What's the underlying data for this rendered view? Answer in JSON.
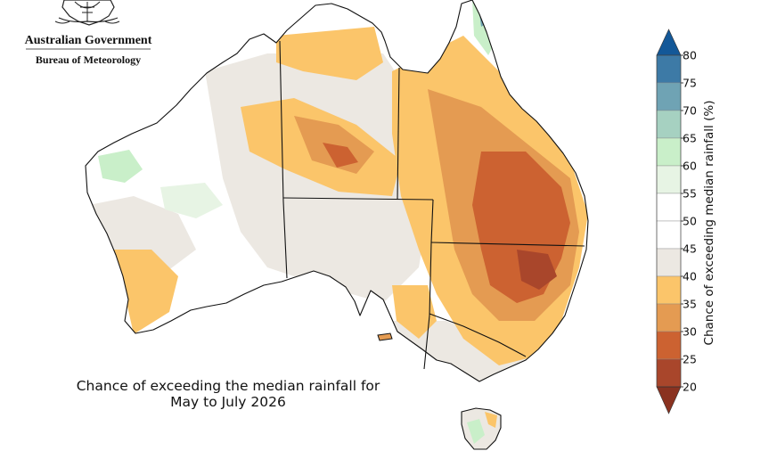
{
  "header": {
    "logo_icon": "coat-of-arms-icon",
    "government": "Australian Government",
    "bureau": "Bureau of Meteorology"
  },
  "map": {
    "caption_line1": "Chance of exceeding the median rainfall for",
    "caption_line2": "May to July 2026",
    "region": "Australia"
  },
  "colorbar": {
    "label": "Chance of exceeding median rainfall (%)",
    "ticks": [
      "80",
      "75",
      "70",
      "65",
      "60",
      "55",
      "50",
      "45",
      "40",
      "35",
      "30",
      "25",
      "20"
    ],
    "bins": [
      {
        "range": "75-80",
        "color": "#3d7aa6"
      },
      {
        "range": "70-75",
        "color": "#6fa3b4"
      },
      {
        "range": "65-70",
        "color": "#a6d1c1"
      },
      {
        "range": "60-65",
        "color": "#c9efc9"
      },
      {
        "range": "55-60",
        "color": "#e7f4e4"
      },
      {
        "range": "50-55",
        "color": "#ffffff"
      },
      {
        "range": "45-50",
        "color": "#ffffff"
      },
      {
        "range": "40-45",
        "color": "#ece8e2"
      },
      {
        "range": "35-40",
        "color": "#fbc56a"
      },
      {
        "range": "30-35",
        "color": "#e49b52"
      },
      {
        "range": "25-30",
        "color": "#cc6231"
      },
      {
        "range": "20-25",
        "color": "#a9462b"
      }
    ],
    "extend_high_color": "#135898",
    "extend_low_color": "#8a3220"
  },
  "colors": {
    "land_neutral": "#ffffff",
    "below_40": "#ece8e2",
    "below_35": "#fbc56a",
    "below_30": "#e49b52",
    "below_25": "#cc6231",
    "above_60": "#c9efc9",
    "above_65": "#a6d1c1",
    "above_70": "#6fa3b4",
    "coast_border": "#111111"
  }
}
